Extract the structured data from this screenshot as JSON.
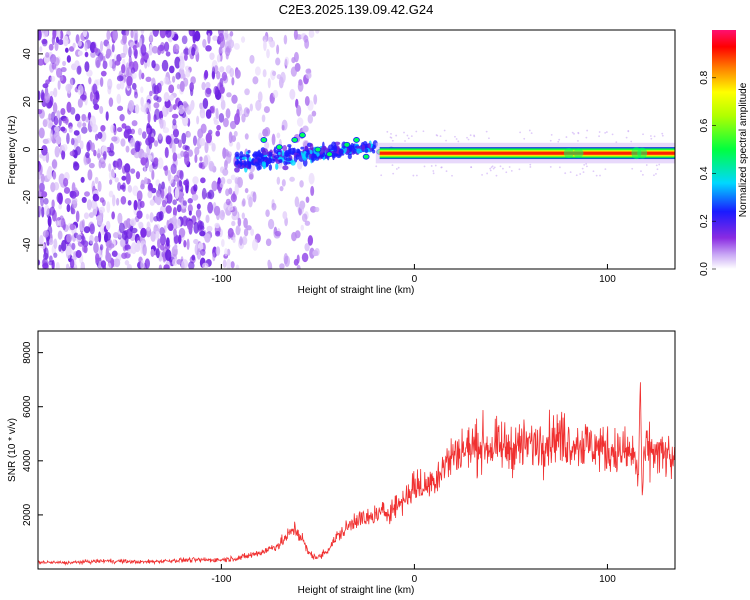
{
  "title": "C2E3.2025.139.09.42.G24",
  "chart_data": [
    {
      "type": "heatmap",
      "xlabel": "Height of straight line (km)",
      "ylabel": "Frequency (Hz)",
      "xlim": [
        -195,
        135
      ],
      "ylim": [
        -50,
        50
      ],
      "xticks": [
        -100,
        0,
        100
      ],
      "xtick_labels": [
        "-100",
        "0",
        "100"
      ],
      "yticks": [
        -40,
        -20,
        0,
        20,
        40
      ],
      "ytick_labels": [
        "-40",
        "-20",
        "0",
        "20",
        "40"
      ],
      "colorbar": {
        "label": "Normalized spectral amplitude",
        "range": [
          0,
          1
        ],
        "ticks": [
          0.0,
          0.2,
          0.4,
          0.6,
          0.8
        ],
        "tick_labels": [
          "0.0",
          "0.2",
          "0.4",
          "0.6",
          "0.8"
        ],
        "colormap_stops": [
          "#ffffff",
          "#9f3cf0",
          "#1a1aff",
          "#00d8ff",
          "#00ff00",
          "#ffff00",
          "#ff8000",
          "#ff0000",
          "#ff1060"
        ]
      },
      "line_center_hz": -1.5,
      "line_halfwidth_hz": 2.5
    },
    {
      "type": "line",
      "xlabel": "Height of straight line (km)",
      "ylabel": "SNR (10 * v/v)",
      "xlim": [
        -195,
        135
      ],
      "ylim": [
        0,
        8800
      ],
      "xticks": [
        -100,
        0,
        100
      ],
      "xtick_labels": [
        "-100",
        "0",
        "100"
      ],
      "yticks": [
        2000,
        4000,
        6000,
        8000
      ],
      "ytick_labels": [
        "2000",
        "4000",
        "6000",
        "8000"
      ],
      "color": "#f03030",
      "series": [
        {
          "x": [
            -195,
            -180,
            -160,
            -140,
            -120,
            -100,
            -90,
            -80,
            -70,
            -62,
            -58,
            -55,
            -50,
            -45,
            -40,
            -35,
            -30,
            -25,
            -20,
            -15,
            -10,
            -5,
            0,
            5,
            10,
            15,
            20,
            25,
            30,
            35,
            40,
            50,
            60,
            70,
            75,
            80,
            90,
            100,
            110,
            114,
            116,
            117,
            118,
            119,
            120,
            125,
            130,
            135
          ],
          "y": [
            250,
            230,
            300,
            260,
            330,
            340,
            420,
            600,
            900,
            1500,
            1100,
            600,
            400,
            700,
            1200,
            1500,
            1900,
            1800,
            2000,
            2100,
            2300,
            2600,
            3100,
            3000,
            3300,
            3800,
            4200,
            4400,
            4500,
            4600,
            4500,
            4500,
            4600,
            4800,
            4900,
            4700,
            4600,
            4400,
            4300,
            4200,
            3200,
            7200,
            2600,
            4000,
            4400,
            4300,
            4200,
            3900
          ]
        }
      ]
    }
  ]
}
